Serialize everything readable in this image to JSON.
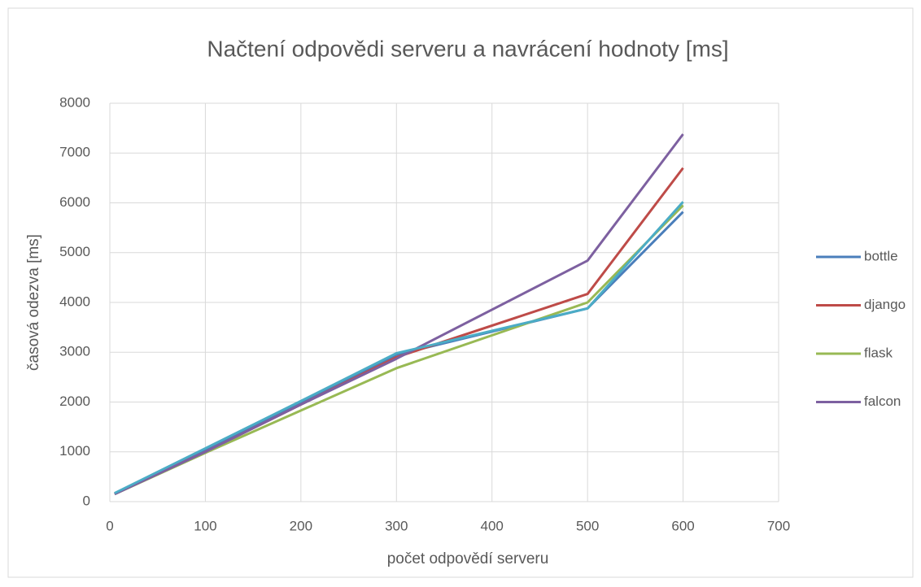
{
  "chart_data": {
    "type": "line",
    "title": "Načtení odpovědi serveru a navrácení hodnoty [ms]",
    "x_label": "počet odpovědí serveru",
    "y_label": "časová odezva [ms]",
    "x": [
      5,
      100,
      200,
      300,
      500,
      600
    ],
    "series": [
      {
        "name": "bottle",
        "color": "#4a7ebb",
        "values": [
          160,
          1050,
          2000,
          2950,
          3880,
          5820
        ]
      },
      {
        "name": "django",
        "color": "#be4b48",
        "values": [
          160,
          1000,
          1950,
          2900,
          4170,
          6700
        ]
      },
      {
        "name": "flask",
        "color": "#98b954",
        "values": [
          150,
          980,
          1830,
          2680,
          4000,
          5950
        ]
      },
      {
        "name": "falcon",
        "color": "#7d60a0",
        "values": [
          150,
          1000,
          1950,
          2870,
          4840,
          7380
        ]
      },
      {
        "color": "#4bacc6",
        "values": [
          170,
          1070,
          2020,
          2980,
          3880,
          6020
        ]
      }
    ],
    "xlim": [
      0,
      700
    ],
    "xticks": [
      0,
      100,
      200,
      300,
      400,
      500,
      600,
      700
    ],
    "ylim": [
      0,
      8000
    ],
    "yticks": [
      0,
      1000,
      2000,
      3000,
      4000,
      5000,
      6000,
      7000,
      8000
    ],
    "grid": true,
    "legend": "right"
  }
}
